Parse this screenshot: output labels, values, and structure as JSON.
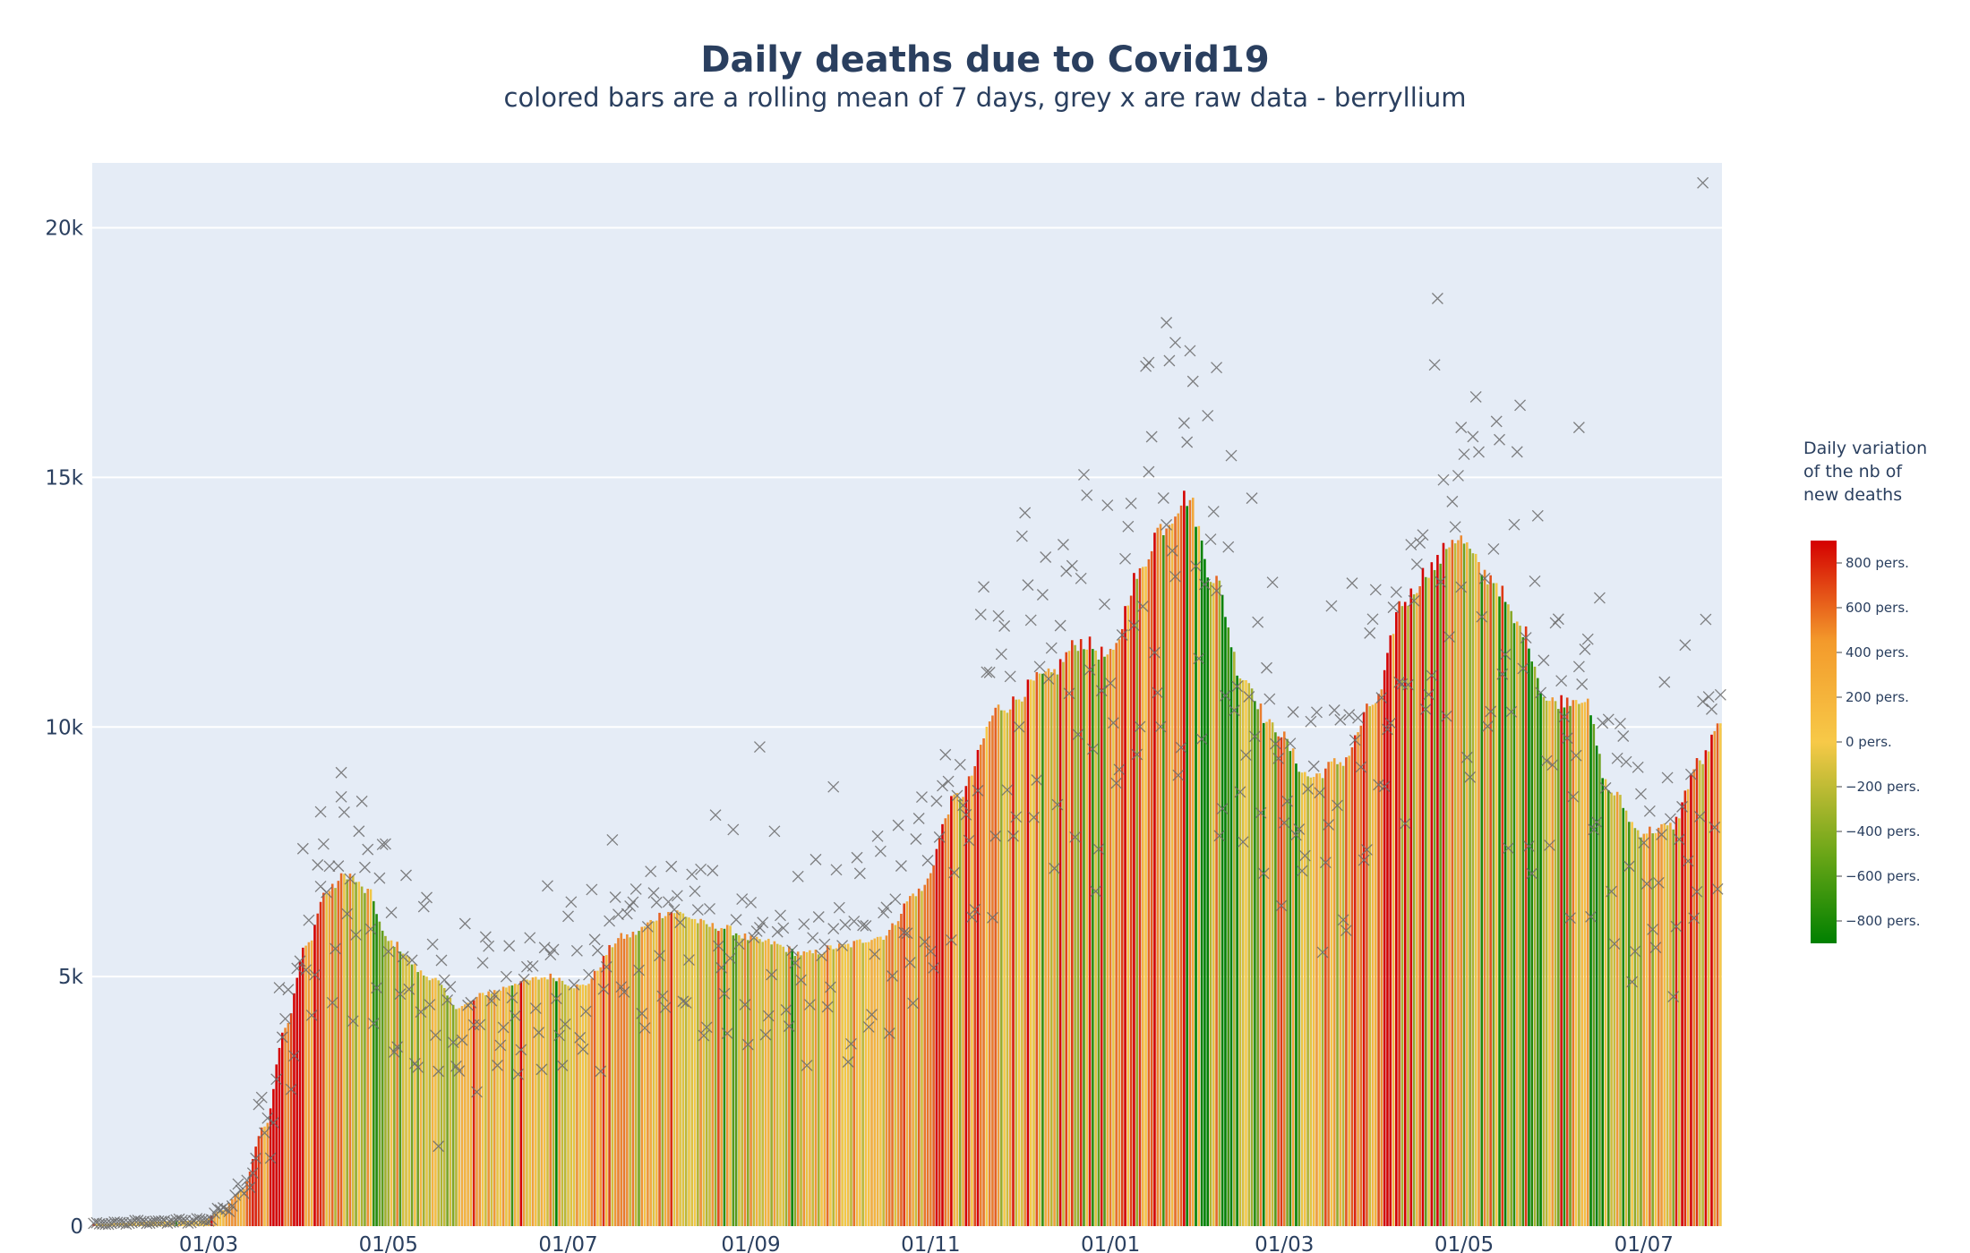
{
  "chart_data": {
    "type": "bar",
    "title": "Daily deaths due to Covid19",
    "subtitle": "colored bars are a rolling mean of 7 days, grey x are raw data - berryllium",
    "x_start": "2020-01-22",
    "x_end": "2021-07-27",
    "x_tick_labels": [
      "01/03",
      "01/05",
      "01/07",
      "01/09",
      "01/11",
      "01/01",
      "01/03",
      "01/05",
      "01/07"
    ],
    "x_tick_dates": [
      "2020-03-01",
      "2020-05-01",
      "2020-07-01",
      "2020-09-01",
      "2020-11-01",
      "2021-01-01",
      "2021-03-01",
      "2021-05-01",
      "2021-07-01"
    ],
    "y_ticks": [
      0,
      5000,
      10000,
      15000,
      20000
    ],
    "y_tick_labels": [
      "0",
      "5k",
      "10k",
      "15k",
      "20k"
    ],
    "ylim": [
      0,
      21300
    ],
    "bar_series_name": "rolling mean of 7 days",
    "scatter_series_name": "raw data",
    "rolling_mean_keypoints": [
      [
        "2020-01-22",
        50
      ],
      [
        "2020-02-15",
        100
      ],
      [
        "2020-02-28",
        110
      ],
      [
        "2020-03-05",
        300
      ],
      [
        "2020-03-12",
        700
      ],
      [
        "2020-03-20",
        2000
      ],
      [
        "2020-03-27",
        4000
      ],
      [
        "2020-04-03",
        5600
      ],
      [
        "2020-04-10",
        6700
      ],
      [
        "2020-04-17",
        7050
      ],
      [
        "2020-04-24",
        6700
      ],
      [
        "2020-05-01",
        5700
      ],
      [
        "2020-05-15",
        5000
      ],
      [
        "2020-05-25",
        4400
      ],
      [
        "2020-06-05",
        4700
      ],
      [
        "2020-06-15",
        4900
      ],
      [
        "2020-06-25",
        5000
      ],
      [
        "2020-07-05",
        4800
      ],
      [
        "2020-07-20",
        5800
      ],
      [
        "2020-08-05",
        6300
      ],
      [
        "2020-08-20",
        6000
      ],
      [
        "2020-09-05",
        5700
      ],
      [
        "2020-09-20",
        5450
      ],
      [
        "2020-10-01",
        5600
      ],
      [
        "2020-10-15",
        5800
      ],
      [
        "2020-10-28",
        6700
      ],
      [
        "2020-11-10",
        8600
      ],
      [
        "2020-11-25",
        10400
      ],
      [
        "2020-12-10",
        11000
      ],
      [
        "2020-12-22",
        11700
      ],
      [
        "2021-01-01",
        11400
      ],
      [
        "2021-01-10",
        13000
      ],
      [
        "2021-01-18",
        14000
      ],
      [
        "2021-01-27",
        14600
      ],
      [
        "2021-02-05",
        13000
      ],
      [
        "2021-02-15",
        11000
      ],
      [
        "2021-02-25",
        10000
      ],
      [
        "2021-03-10",
        9000
      ],
      [
        "2021-03-20",
        9300
      ],
      [
        "2021-04-01",
        10500
      ],
      [
        "2021-04-10",
        12500
      ],
      [
        "2021-04-20",
        13200
      ],
      [
        "2021-04-28",
        13800
      ],
      [
        "2021-05-10",
        13000
      ],
      [
        "2021-05-20",
        12000
      ],
      [
        "2021-05-30",
        10500
      ],
      [
        "2021-06-10",
        10600
      ],
      [
        "2021-06-20",
        8700
      ],
      [
        "2021-06-30",
        7900
      ],
      [
        "2021-07-10",
        8000
      ],
      [
        "2021-07-20",
        9300
      ],
      [
        "2021-07-27",
        10000
      ]
    ],
    "raw_data_highlights": [
      [
        "2020-04-15",
        8600
      ],
      [
        "2020-04-08",
        8300
      ],
      [
        "2020-09-04",
        9600
      ],
      [
        "2020-09-29",
        8800
      ],
      [
        "2020-05-18",
        1600
      ],
      [
        "2021-01-20",
        18100
      ],
      [
        "2021-01-14",
        17300
      ],
      [
        "2021-01-23",
        17700
      ],
      [
        "2021-02-06",
        17200
      ],
      [
        "2021-06-09",
        16000
      ],
      [
        "2021-04-30",
        16000
      ],
      [
        "2021-07-21",
        20900
      ]
    ],
    "colorbar": {
      "title_lines": [
        "Daily variation",
        "of the nb of",
        "new deaths"
      ],
      "tick_values": [
        800,
        600,
        400,
        200,
        0,
        -200,
        -400,
        -600,
        -800
      ],
      "tick_labels": [
        "800 pers.",
        "600 pers.",
        "400 pers.",
        "200 pers.",
        "0 pers.",
        "−200 pers.",
        "−400 pers.",
        "−600 pers.",
        "−800 pers."
      ],
      "range": [
        -900,
        900
      ],
      "colorscale": [
        "#008000",
        "#f7c948",
        "#d40000"
      ]
    },
    "colors": {
      "plot_bg": "#e5ecf6",
      "grid": "#ffffff",
      "marker": "#6b6b6b"
    }
  }
}
